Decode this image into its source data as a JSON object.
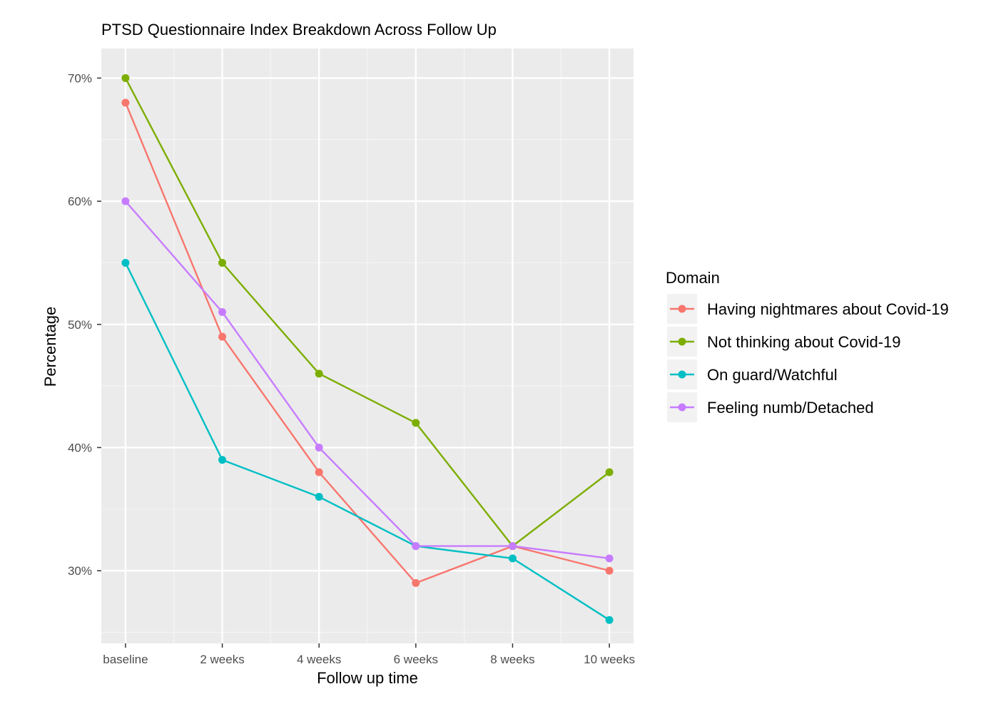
{
  "colors": {
    "panel_background": "#EBEBEB",
    "grid_major": "#FFFFFF",
    "grid_minor": "#F5F5F5",
    "tick_text": "#4D4D4D",
    "tick_mark": "#333333"
  },
  "chart_data": {
    "type": "line",
    "title": "PTSD Questionnaire Index Breakdown Across Follow Up",
    "xlabel": "Follow up time",
    "ylabel": "Percentage",
    "categories": [
      "baseline",
      "2 weeks",
      "4 weeks",
      "6 weeks",
      "8 weeks",
      "10 weeks"
    ],
    "y_ticks": [
      30,
      40,
      50,
      60,
      70
    ],
    "y_tick_labels": [
      "30%",
      "40%",
      "50%",
      "60%",
      "70%"
    ],
    "ylim": [
      24.1,
      72.4
    ],
    "grid": true,
    "legend": {
      "title": "Domain",
      "position": "right"
    },
    "series": [
      {
        "name": "Having nightmares about Covid-19",
        "color": "#F8766D",
        "values": [
          68,
          49,
          38,
          29,
          32,
          30
        ]
      },
      {
        "name": "Not thinking about Covid-19",
        "color": "#7CAE00",
        "values": [
          70,
          55,
          46,
          42,
          32,
          38
        ]
      },
      {
        "name": "On guard/Watchful",
        "color": "#00BFC4",
        "values": [
          55,
          39,
          36,
          32,
          31,
          26
        ]
      },
      {
        "name": "Feeling numb/Detached",
        "color": "#C77CFF",
        "values": [
          60,
          51,
          40,
          32,
          32,
          31
        ]
      }
    ]
  }
}
